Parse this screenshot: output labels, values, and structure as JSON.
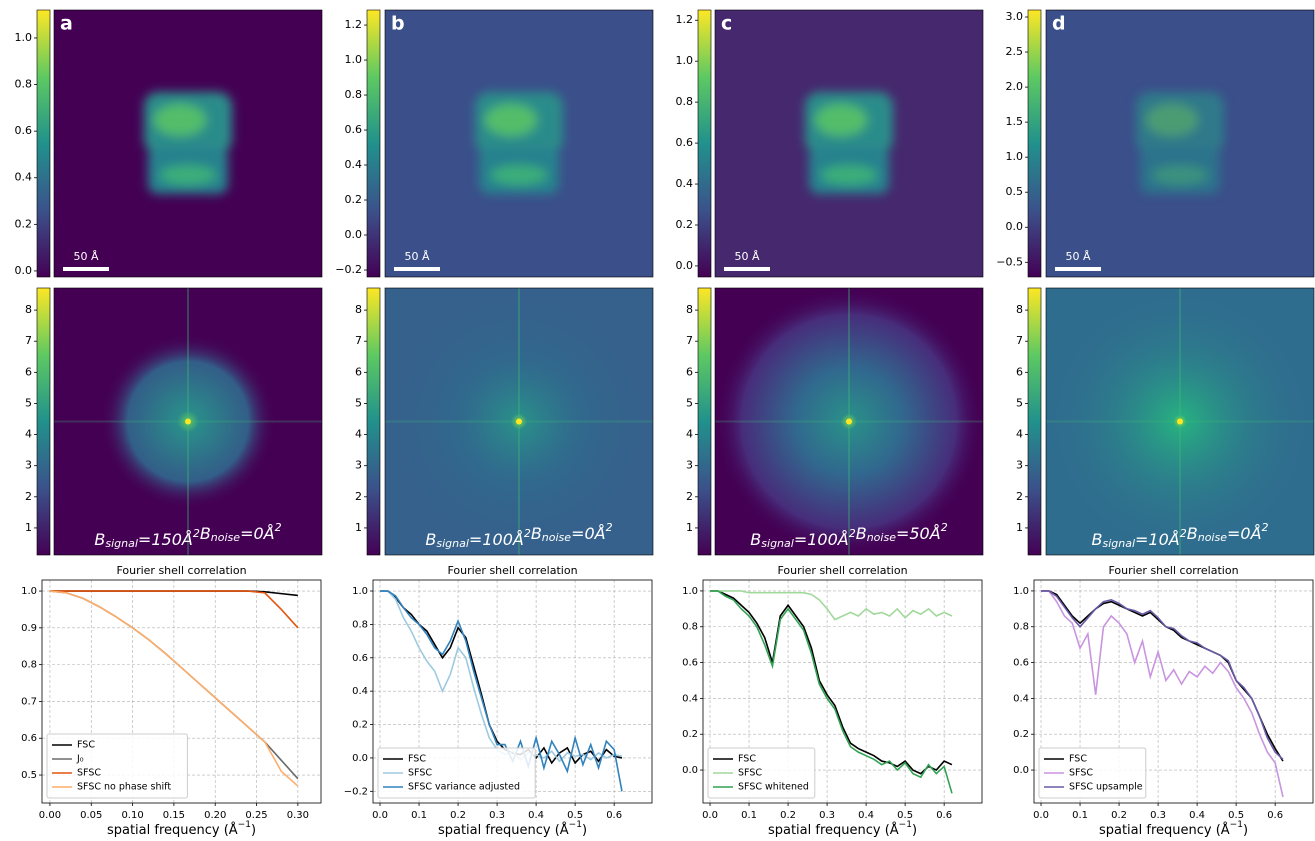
{
  "chart_data": [
    {
      "type": "heatmap",
      "colormap": "viridis",
      "color": "#440154",
      "panel_label": "a",
      "scalebar_label": "50 Å",
      "ylim": [
        -0.026,
        1.12
      ],
      "yticks": [
        {
          "value": 0,
          "label": "0.0"
        },
        0.2,
        0.4,
        0.6,
        0.8,
        {
          "value": 1,
          "label": "1.0"
        }
      ]
    },
    {
      "type": "heatmap",
      "colormap": "viridis",
      "color": "#440154",
      "annotation": [
        {
          "symbol": "B",
          "sub": "signal",
          "text": "=150Å",
          "sup": "2"
        },
        {
          "symbol": "B",
          "sub": "noise",
          "text": "=0Å",
          "sup": "2"
        }
      ],
      "ylim": [
        0.13,
        8.71
      ],
      "yticks": [
        1,
        2,
        3,
        4,
        5,
        6,
        7,
        8
      ]
    },
    {
      "type": "line",
      "title": "Fourier shell correlation",
      "xlabel": {
        "text": "spatial frequency (Å",
        "sup": "−1",
        "end": ")"
      },
      "grid": true,
      "legend": "lower left",
      "xlim": [
        -0.0096,
        0.328
      ],
      "ylim": [
        0.424,
        1.03
      ],
      "xticks": [
        {
          "value": 0,
          "label": "0.00"
        },
        0.05,
        {
          "value": 0.1,
          "label": "0.10"
        },
        0.15,
        {
          "value": 0.2,
          "label": "0.20"
        },
        0.25,
        {
          "value": 0.3,
          "label": "0.30"
        }
      ],
      "yticks": [
        0.5,
        0.6,
        0.7,
        0.8,
        0.9,
        {
          "value": 1,
          "label": "1.0"
        }
      ],
      "x": [
        0,
        0.02,
        0.04,
        0.06,
        0.08,
        0.1,
        0.12,
        0.14,
        0.16,
        0.18,
        0.2,
        0.22,
        0.24,
        0.26,
        0.28,
        0.3
      ],
      "series": [
        {
          "name": "FSC",
          "color": "#000000",
          "values": [
            1,
            1,
            1,
            1,
            1,
            1,
            1,
            1,
            1,
            1,
            1,
            1,
            1,
            0.998,
            0.993,
            0.988
          ]
        },
        {
          "name": "J₀",
          "color": "#6b6b6b",
          "values": [
            1,
            0.995,
            0.98,
            0.957,
            0.93,
            0.9,
            0.867,
            0.83,
            0.79,
            0.75,
            0.71,
            0.67,
            0.63,
            0.59,
            0.54,
            0.49
          ]
        },
        {
          "name": "SFSC",
          "color": "#e6550d",
          "values": [
            1,
            1,
            1,
            1,
            1,
            1,
            1,
            1,
            1,
            1,
            1,
            1,
            1,
            0.995,
            0.95,
            0.9
          ]
        },
        {
          "name": "SFSC no phase shift",
          "color": "#fdae6b",
          "values": [
            1,
            0.995,
            0.98,
            0.957,
            0.93,
            0.9,
            0.867,
            0.83,
            0.79,
            0.75,
            0.71,
            0.67,
            0.63,
            0.59,
            0.51,
            0.47
          ]
        }
      ]
    },
    {
      "type": "heatmap",
      "colormap": "viridis",
      "color": "#3b4f8a",
      "panel_label": "b",
      "scalebar_label": "50 Å",
      "ylim": [
        -0.24,
        1.286
      ],
      "yticks": [
        {
          "value": -0.2,
          "label": "−0.2"
        },
        {
          "value": 0,
          "label": "0.0"
        },
        0.2,
        0.4,
        0.6,
        0.8,
        {
          "value": 1,
          "label": "1.0"
        },
        1.2
      ]
    },
    {
      "type": "heatmap",
      "colormap": "viridis",
      "color": "#35618c",
      "annotation": [
        {
          "symbol": "B",
          "sub": "signal",
          "text": "=100Å",
          "sup": "2"
        },
        {
          "symbol": "B",
          "sub": "noise",
          "text": "=0Å",
          "sup": "2"
        }
      ],
      "ylim": [
        0.13,
        8.71
      ],
      "yticks": [
        1,
        2,
        3,
        4,
        5,
        6,
        7,
        8
      ]
    },
    {
      "type": "line",
      "title": "Fourier shell correlation",
      "xlabel": {
        "text": "spatial frequency (Å",
        "sup": "−1",
        "end": ")"
      },
      "grid": true,
      "legend": "lower left",
      "xlim": [
        -0.018,
        0.697
      ],
      "ylim": [
        -0.27,
        1.066
      ],
      "xticks": [
        {
          "value": 0,
          "label": "0.0"
        },
        0.1,
        0.2,
        0.3,
        0.4,
        0.5,
        0.6
      ],
      "yticks": [
        {
          "value": -0.2,
          "label": "−0.2"
        },
        {
          "value": 0,
          "label": "0.0"
        },
        0.2,
        0.4,
        0.6,
        0.8,
        {
          "value": 1,
          "label": "1.0"
        }
      ],
      "x": [
        0,
        0.02,
        0.04,
        0.06,
        0.08,
        0.1,
        0.12,
        0.14,
        0.16,
        0.18,
        0.2,
        0.22,
        0.24,
        0.26,
        0.28,
        0.3,
        0.32,
        0.34,
        0.36,
        0.38,
        0.4,
        0.42,
        0.44,
        0.46,
        0.48,
        0.5,
        0.52,
        0.54,
        0.56,
        0.58,
        0.6,
        0.62
      ],
      "series": [
        {
          "name": "FSC",
          "color": "#000000",
          "values": [
            1,
            1,
            0.96,
            0.9,
            0.86,
            0.8,
            0.76,
            0.68,
            0.6,
            0.66,
            0.78,
            0.72,
            0.55,
            0.38,
            0.2,
            0.1,
            0.05,
            0.03,
            0.02,
            0.05,
            0,
            0.06,
            -0.03,
            0.03,
            0.06,
            -0.03,
            0.02,
            0.04,
            -0.02,
            0.05,
            0.01,
            0
          ]
        },
        {
          "name": "SFSC",
          "color": "#9ecae1",
          "values": [
            1,
            1,
            0.95,
            0.84,
            0.76,
            0.66,
            0.58,
            0.52,
            0.4,
            0.5,
            0.66,
            0.6,
            0.42,
            0.26,
            0.12,
            0.05,
            0.02,
            0.04,
            -0.01,
            0.03,
            0.02,
            0,
            0.04,
            -0.02,
            0.03,
            0.01,
            0.02,
            -0.01,
            0.03,
            0,
            0.02,
            0.01
          ]
        },
        {
          "name": "SFSC variance adjusted",
          "color": "#3182bd",
          "values": [
            1,
            1,
            0.97,
            0.9,
            0.84,
            0.8,
            0.74,
            0.66,
            0.62,
            0.7,
            0.82,
            0.7,
            0.52,
            0.36,
            0.2,
            0.08,
            0.08,
            -0.02,
            0.1,
            -0.05,
            0.12,
            -0.06,
            0.1,
            0.02,
            -0.08,
            0.12,
            -0.04,
            0.08,
            -0.06,
            0.1,
            0.05,
            -0.2
          ]
        }
      ]
    },
    {
      "type": "heatmap",
      "colormap": "viridis",
      "color": "#46286e",
      "panel_label": "c",
      "scalebar_label": "50 Å",
      "ylim": [
        -0.054,
        1.25
      ],
      "yticks": [
        {
          "value": 0,
          "label": "0.0"
        },
        0.2,
        0.4,
        0.6,
        0.8,
        {
          "value": 1,
          "label": "1.0"
        },
        1.2
      ]
    },
    {
      "type": "heatmap",
      "colormap": "viridis",
      "color": "#440154",
      "annotation": [
        {
          "symbol": "B",
          "sub": "signal",
          "text": "=100Å",
          "sup": "2"
        },
        {
          "symbol": "B",
          "sub": "noise",
          "text": "=50Å",
          "sup": "2"
        }
      ],
      "ylim": [
        0.13,
        8.71
      ],
      "yticks": [
        1,
        2,
        3,
        4,
        5,
        6,
        7,
        8
      ]
    },
    {
      "type": "line",
      "title": "Fourier shell correlation",
      "xlabel": {
        "text": "spatial frequency (Å",
        "sup": "−1",
        "end": ")"
      },
      "grid": true,
      "legend": "lower left",
      "xlim": [
        -0.018,
        0.697
      ],
      "ylim": [
        -0.184,
        1.061
      ],
      "xticks": [
        {
          "value": 0,
          "label": "0.0"
        },
        0.1,
        0.2,
        0.3,
        0.4,
        0.5,
        0.6
      ],
      "yticks": [
        {
          "value": 0,
          "label": "0.0"
        },
        0.2,
        0.4,
        0.6,
        0.8,
        {
          "value": 1,
          "label": "1.0"
        }
      ],
      "x": [
        0,
        0.02,
        0.04,
        0.06,
        0.08,
        0.1,
        0.12,
        0.14,
        0.16,
        0.18,
        0.2,
        0.22,
        0.24,
        0.26,
        0.28,
        0.3,
        0.32,
        0.34,
        0.36,
        0.38,
        0.4,
        0.42,
        0.44,
        0.46,
        0.48,
        0.5,
        0.52,
        0.54,
        0.56,
        0.58,
        0.6,
        0.62
      ],
      "series": [
        {
          "name": "FSC",
          "color": "#000000",
          "values": [
            1,
            1,
            0.98,
            0.96,
            0.92,
            0.88,
            0.82,
            0.74,
            0.6,
            0.86,
            0.92,
            0.86,
            0.8,
            0.68,
            0.5,
            0.42,
            0.36,
            0.24,
            0.15,
            0.12,
            0.1,
            0.08,
            0.05,
            0.04,
            0.02,
            0.05,
            0,
            -0.02,
            0.02,
            0,
            0.05,
            0.03
          ]
        },
        {
          "name": "SFSC",
          "color": "#a1d99b",
          "values": [
            1,
            1,
            1,
            1,
            1,
            0.99,
            0.99,
            0.99,
            0.99,
            0.99,
            0.99,
            0.99,
            0.99,
            0.98,
            0.95,
            0.9,
            0.84,
            0.86,
            0.88,
            0.86,
            0.9,
            0.87,
            0.88,
            0.86,
            0.9,
            0.85,
            0.89,
            0.87,
            0.9,
            0.86,
            0.88,
            0.86
          ]
        },
        {
          "name": "SFSC whitened",
          "color": "#31a354",
          "values": [
            1,
            1,
            0.97,
            0.95,
            0.9,
            0.86,
            0.8,
            0.7,
            0.58,
            0.84,
            0.9,
            0.84,
            0.78,
            0.65,
            0.48,
            0.4,
            0.34,
            0.22,
            0.13,
            0.1,
            0.08,
            0.06,
            0.03,
            0.05,
            0,
            0.04,
            -0.02,
            -0.04,
            0.03,
            -0.02,
            0.02,
            -0.13
          ]
        }
      ]
    },
    {
      "type": "heatmap",
      "colormap": "viridis",
      "color": "#3b4f8a",
      "panel_label": "d",
      "scalebar_label": "50 Å",
      "ylim": [
        -0.71,
        3.1
      ],
      "yticks": [
        {
          "value": -0.5,
          "label": "−0.5"
        },
        {
          "value": 0,
          "label": "0.0"
        },
        0.5,
        {
          "value": 1,
          "label": "1.0"
        },
        1.5,
        {
          "value": 2,
          "label": "2.0"
        },
        2.5,
        {
          "value": 3,
          "label": "3.0"
        }
      ]
    },
    {
      "type": "heatmap",
      "colormap": "viridis",
      "color": "#2f6d8e",
      "annotation": [
        {
          "symbol": "B",
          "sub": "signal",
          "text": "=10Å",
          "sup": "2"
        },
        {
          "symbol": "B",
          "sub": "noise",
          "text": "=0Å",
          "sup": "2"
        }
      ],
      "ylim": [
        0.13,
        8.71
      ],
      "yticks": [
        1,
        2,
        3,
        4,
        5,
        6,
        7,
        8
      ]
    },
    {
      "type": "line",
      "title": "Fourier shell correlation",
      "xlabel": {
        "text": "spatial frequency (Å",
        "sup": "−1",
        "end": ")"
      },
      "grid": true,
      "legend": "lower left",
      "xlim": [
        -0.018,
        0.697
      ],
      "ylim": [
        -0.184,
        1.061
      ],
      "xticks": [
        {
          "value": 0,
          "label": "0.0"
        },
        0.1,
        0.2,
        0.3,
        0.4,
        0.5,
        0.6
      ],
      "yticks": [
        {
          "value": 0,
          "label": "0.0"
        },
        0.2,
        0.4,
        0.6,
        0.8,
        {
          "value": 1,
          "label": "1.0"
        }
      ],
      "x": [
        0,
        0.02,
        0.04,
        0.06,
        0.08,
        0.1,
        0.12,
        0.14,
        0.16,
        0.18,
        0.2,
        0.22,
        0.24,
        0.26,
        0.28,
        0.3,
        0.32,
        0.34,
        0.36,
        0.38,
        0.4,
        0.42,
        0.44,
        0.46,
        0.48,
        0.5,
        0.52,
        0.54,
        0.56,
        0.58,
        0.6,
        0.62
      ],
      "series": [
        {
          "name": "FSC",
          "color": "#000000",
          "values": [
            1,
            1,
            0.98,
            0.92,
            0.86,
            0.82,
            0.86,
            0.9,
            0.93,
            0.94,
            0.92,
            0.9,
            0.88,
            0.86,
            0.88,
            0.84,
            0.8,
            0.78,
            0.74,
            0.72,
            0.7,
            0.68,
            0.66,
            0.64,
            0.6,
            0.5,
            0.45,
            0.4,
            0.3,
            0.2,
            0.12,
            0.05
          ]
        },
        {
          "name": "SFSC",
          "color": "#c994e0",
          "values": [
            1,
            1,
            0.94,
            0.86,
            0.82,
            0.68,
            0.76,
            0.42,
            0.8,
            0.86,
            0.82,
            0.76,
            0.6,
            0.72,
            0.52,
            0.66,
            0.5,
            0.56,
            0.48,
            0.55,
            0.52,
            0.58,
            0.54,
            0.6,
            0.55,
            0.46,
            0.4,
            0.32,
            0.2,
            0.1,
            0.04,
            -0.15
          ]
        },
        {
          "name": "SFSC upsample",
          "color": "#6a5aa8",
          "values": [
            1,
            1,
            0.97,
            0.91,
            0.85,
            0.8,
            0.85,
            0.9,
            0.94,
            0.95,
            0.93,
            0.9,
            0.89,
            0.87,
            0.89,
            0.85,
            0.8,
            0.79,
            0.75,
            0.72,
            0.71,
            0.68,
            0.66,
            0.64,
            0.61,
            0.5,
            0.46,
            0.4,
            0.3,
            0.18,
            0.1,
            0.06
          ]
        }
      ]
    }
  ]
}
